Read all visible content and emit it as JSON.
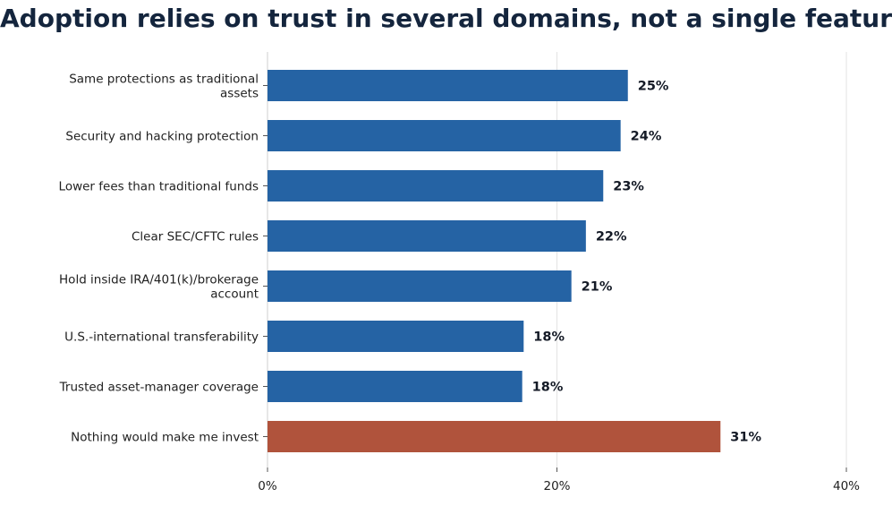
{
  "chart_data": {
    "type": "bar",
    "orientation": "horizontal",
    "title": "Adoption relies on trust in several domains, not a single feature",
    "xlabel": "",
    "ylabel": "",
    "categories": [
      [
        "Same protections as traditional",
        "assets"
      ],
      [
        "Security and hacking protection"
      ],
      [
        "Lower fees than traditional funds"
      ],
      [
        "Clear SEC/CFTC rules"
      ],
      [
        "Hold inside IRA/401(k)/brokerage",
        "account"
      ],
      [
        "U.S.-international transferability"
      ],
      [
        "Trusted asset-manager coverage"
      ],
      [
        "Nothing would make me invest"
      ]
    ],
    "values": [
      24.9,
      24.4,
      23.2,
      22.0,
      21.0,
      17.7,
      17.6,
      31.3
    ],
    "value_labels": [
      "25%",
      "24%",
      "23%",
      "22%",
      "21%",
      "18%",
      "18%",
      "31%"
    ],
    "bar_colors": [
      "#2563a4",
      "#2563a4",
      "#2563a4",
      "#2563a4",
      "#2563a4",
      "#2563a4",
      "#2563a4",
      "#b0533c"
    ],
    "xlim": [
      0,
      40
    ],
    "xticks": [
      0,
      20,
      40
    ],
    "xtick_labels": [
      "0%",
      "20%",
      "40%"
    ],
    "grid": "vertical"
  }
}
